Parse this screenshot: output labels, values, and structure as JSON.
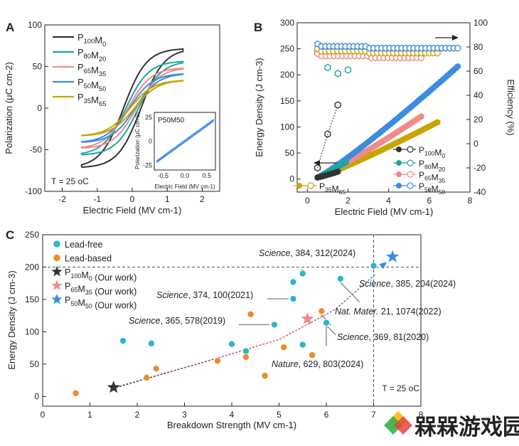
{
  "chart_data": [
    {
      "panel_label": "A",
      "type": "line",
      "xlabel": "Electric Field (MV cm-1)",
      "ylabel": "Polarization (μC cm-2)",
      "xlim": [
        -2.5,
        2.5
      ],
      "ylim": [
        -100,
        100
      ],
      "xticks": [
        "-2",
        "-1",
        "0",
        "1",
        "2"
      ],
      "yticks": [
        "-100",
        "-50",
        "0",
        "50",
        "100"
      ],
      "annotation": "T = 25 oC",
      "legend": [
        "P100M0",
        "P80M20",
        "P65M35",
        "P50M50",
        "P35M65"
      ],
      "series": [
        {
          "name": "P100M0",
          "color": "#333333",
          "Emax": 1.45,
          "Pmax": 71,
          "Pr": 32,
          "Ec": 0.25
        },
        {
          "name": "P80M20",
          "color": "#1aa89a",
          "Emax": 1.45,
          "Pmax": 56,
          "Pr": 12,
          "Ec": 0.18
        },
        {
          "name": "P65M35",
          "color": "#f08a8a",
          "Emax": 1.45,
          "Pmax": 48,
          "Pr": 8,
          "Ec": 0.12
        },
        {
          "name": "P50M50",
          "color": "#3b8de0",
          "Emax": 1.45,
          "Pmax": 41,
          "Pr": 5,
          "Ec": 0.08
        },
        {
          "name": "P35M65",
          "color": "#c9a400",
          "Emax": 1.45,
          "Pmax": 33,
          "Pr": 3,
          "Ec": 0.06
        }
      ],
      "inset": {
        "title": "P50M50",
        "xlabel": "Electric Field (MV cm-1)",
        "ylabel": "Polarization (μC cm-2)",
        "xlim": [
          -0.7,
          0.7
        ],
        "ylim": [
          -30,
          30
        ],
        "xticks": [
          "-0.5",
          "0.0",
          "0.5"
        ],
        "yticks": [
          "-25",
          "0",
          "25"
        ]
      }
    },
    {
      "panel_label": "B",
      "type": "scatter",
      "xlabel": "Electric Field (MV cm-1)",
      "ylabel": "Energy Density (J cm-3)",
      "y2label": "Efficiency (%)",
      "xlim": [
        -0.5,
        8
      ],
      "ylim": [
        -25,
        300
      ],
      "y2lim": [
        -40,
        100
      ],
      "xticks": [
        "0",
        "2",
        "4",
        "6",
        "8"
      ],
      "yticks": [
        "0",
        "50",
        "100",
        "150",
        "200",
        "250",
        "300"
      ],
      "y2ticks": [
        "-40",
        "-20",
        "0",
        "20",
        "40",
        "60",
        "80",
        "100"
      ],
      "legend": [
        "P100M0",
        "P80M20",
        "P65M35",
        "P35M65",
        "P50M50"
      ],
      "series": [
        {
          "name": "P100M0",
          "color": "#333333",
          "emax": 1.5,
          "energy_end": 14,
          "eff_x": [
            0.5,
            1.0,
            1.5
          ],
          "eff": [
            -20,
            8,
            32
          ]
        },
        {
          "name": "P80M20",
          "color": "#1aa89a",
          "emax": 1.9,
          "energy_end": 32,
          "eff_x": [
            0.5,
            1.0,
            1.5,
            2.0
          ],
          "eff": [
            76,
            63,
            58,
            61
          ]
        },
        {
          "name": "P65M35",
          "color": "#f08a8a",
          "emax": 5.6,
          "energy_end": 120,
          "eff_flat": 72.5
        },
        {
          "name": "P35M65",
          "color": "#c9a400",
          "emax": 6.4,
          "energy_end": 109,
          "eff_flat": 76.5
        },
        {
          "name": "P50M50",
          "color": "#3b8de0",
          "emax": 7.4,
          "energy_end": 216,
          "eff_flat": 80.5
        }
      ]
    },
    {
      "panel_label": "C",
      "type": "scatter",
      "xlabel": "Breakdown Strength (MV cm-1)",
      "ylabel": "Energy Density (J cm-3)",
      "xlim": [
        0,
        8
      ],
      "ylim": [
        -15,
        250
      ],
      "xticks": [
        "0",
        "1",
        "2",
        "3",
        "4",
        "5",
        "6",
        "7",
        "8"
      ],
      "yticks": [
        "0",
        "50",
        "100",
        "150",
        "200",
        "250"
      ],
      "annotation": "T = 25 oC",
      "reference_lines": {
        "x": 7,
        "y": 200
      },
      "legend": [
        "Lead-free",
        "Lead-based",
        "P100M0 (Our work)",
        "P65M35 (Our work)",
        "P50M50 (Our work)"
      ],
      "series": [
        {
          "name": "Lead-free",
          "color": "#2bb6c9",
          "x": [
            1.7,
            2.3,
            4.0,
            4.3,
            4.9,
            5.3,
            5.3,
            5.5,
            5.5,
            6.0,
            6.3,
            7.0
          ],
          "y": [
            86,
            82,
            81,
            70,
            111,
            151,
            177,
            190,
            80,
            114,
            182,
            202
          ]
        },
        {
          "name": "Lead-based",
          "color": "#f08a2a",
          "x": [
            0.7,
            2.2,
            2.4,
            3.7,
            4.3,
            4.4,
            4.7,
            5.1,
            5.7,
            5.9
          ],
          "y": [
            5,
            29,
            43,
            55,
            61,
            127,
            32,
            76,
            64,
            132
          ]
        },
        {
          "name": "P100M0 (Our work)",
          "color": "#333333",
          "x": [
            1.5
          ],
          "y": [
            14
          ]
        },
        {
          "name": "P65M35 (Our work)",
          "color": "#f08a8a",
          "x": [
            5.6
          ],
          "y": [
            120
          ]
        },
        {
          "name": "P50M50 (Our work)",
          "color": "#3b8de0",
          "x": [
            7.4
          ],
          "y": [
            216
          ]
        }
      ],
      "citations": [
        {
          "journal": "Science",
          "ref": ", 384, 312(2024)"
        },
        {
          "journal": "Science",
          "ref": ", 374, 100(2021)"
        },
        {
          "journal": "Science",
          "ref": ", 385, 204(2024)"
        },
        {
          "journal": "Nat. Mater.",
          "ref": " 21, 1074(2022)"
        },
        {
          "journal": "Science",
          "ref": ", 365, 578(2019)"
        },
        {
          "journal": "Science",
          "ref": ", 369, 81(2020)"
        },
        {
          "journal": "Nature",
          "ref": ", 629, 803(2024)"
        }
      ]
    }
  ],
  "watermark": {
    "text": "槑槑游戏园"
  }
}
